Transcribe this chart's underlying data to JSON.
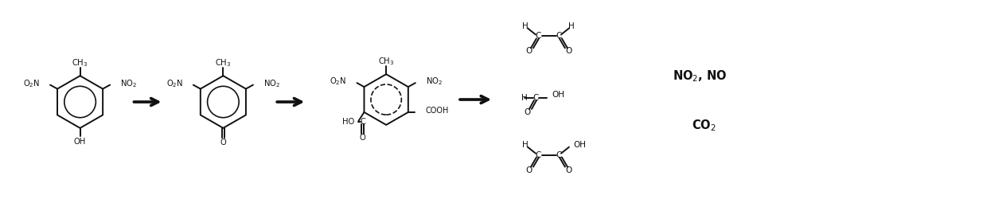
{
  "bg_color": "#ffffff",
  "line_color": "#111111",
  "figsize": [
    12.4,
    2.6
  ],
  "dpi": 100,
  "xlim": [
    0,
    124
  ],
  "ylim": [
    0,
    26
  ]
}
